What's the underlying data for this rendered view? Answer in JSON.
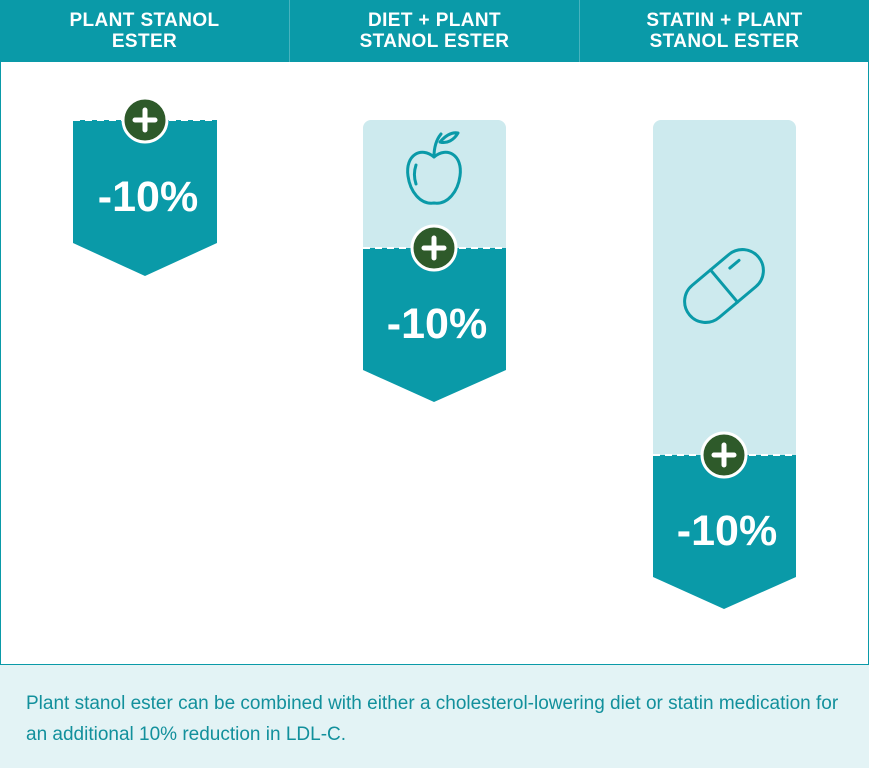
{
  "columns": [
    {
      "heading": "PLANT STANOL\nESTER",
      "reduction_label": "-10%"
    },
    {
      "heading": "DIET + PLANT\nSTANOL ESTER",
      "reduction_label": "-10%",
      "base_icon": "apple-icon"
    },
    {
      "heading": "STATIN + PLANT\nSTANOL ESTER",
      "reduction_label": "-10%",
      "base_icon": "pill-capsule-icon"
    }
  ],
  "add_icon": "plus-icon",
  "footer": {
    "text": "Plant stanol ester can be combined with either a cholesterol-lowering diet or statin medication for an additional 10% reduction in LDL-C."
  },
  "colors": {
    "teal": "#0a9aa8",
    "light_teal": "#cdeaee",
    "dark_green": "#2e5a2a",
    "footer_bg": "#e3f3f5",
    "footer_text": "#12909c"
  }
}
